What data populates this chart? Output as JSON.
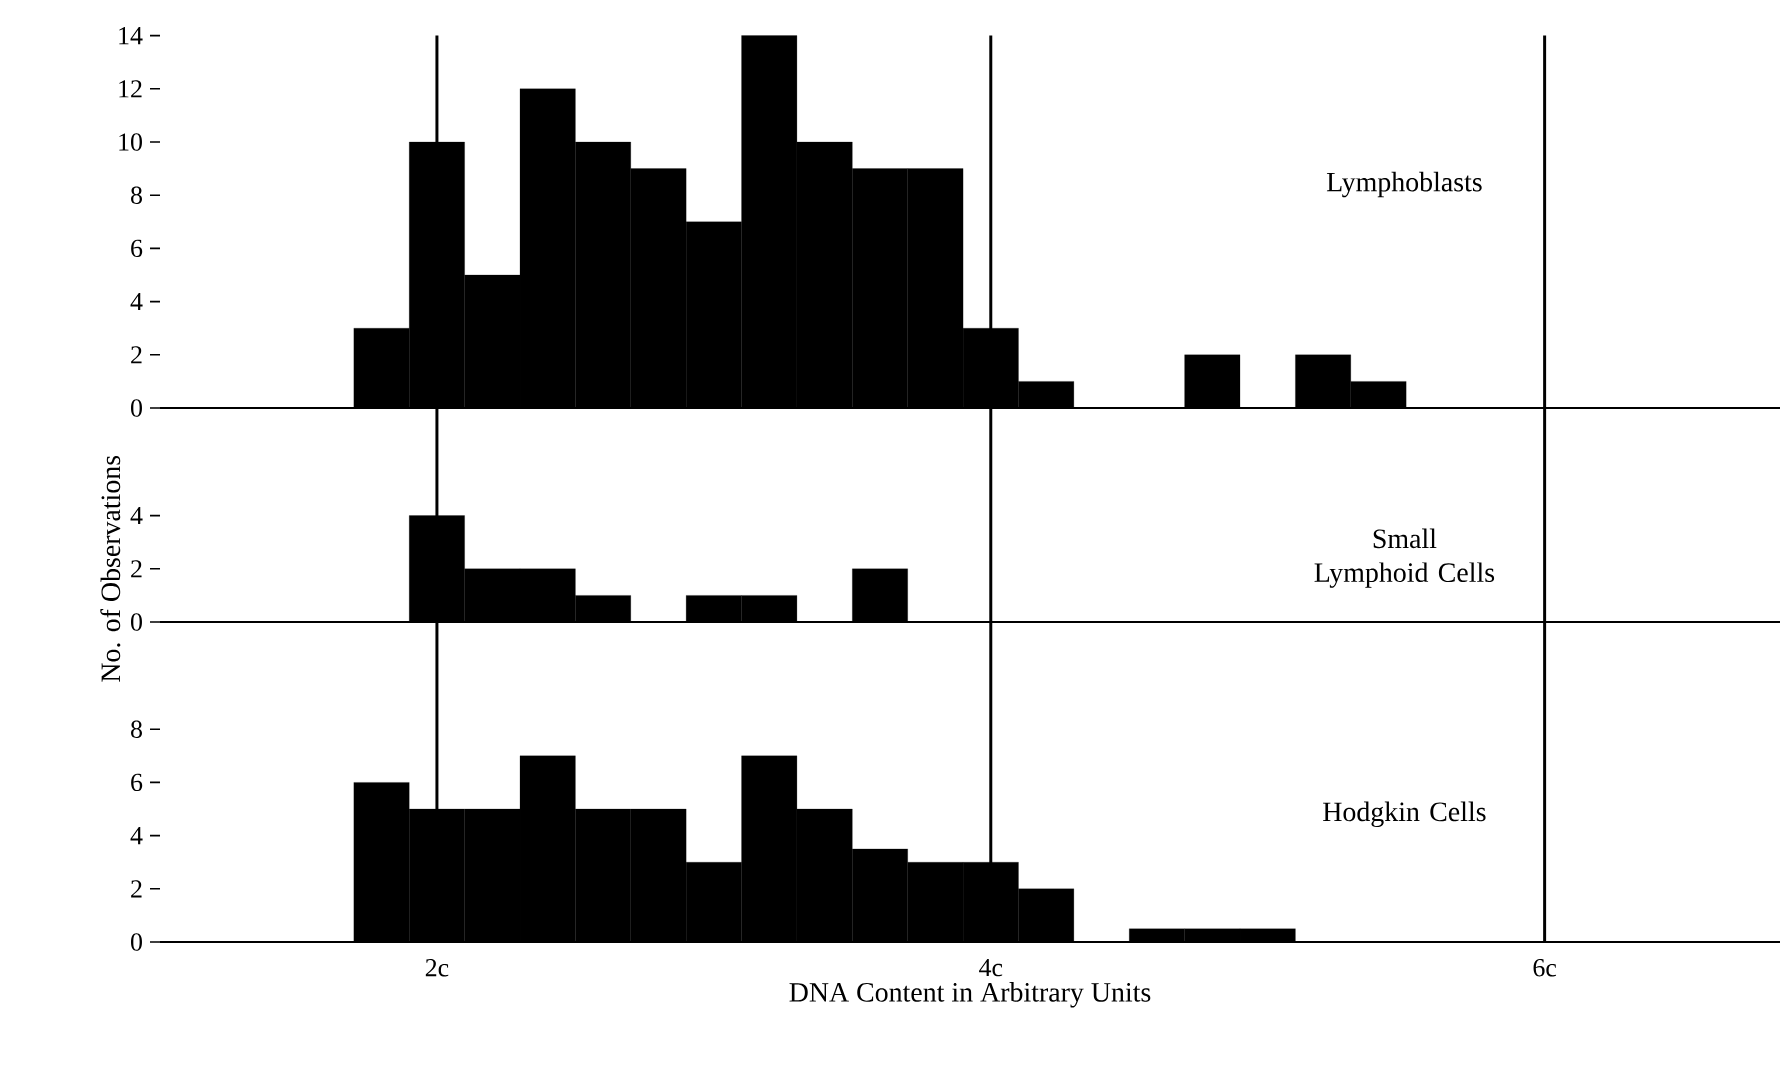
{
  "chart_data": [
    {
      "type": "histogram",
      "title": "Lymphoblasts",
      "bins": [
        1.7,
        1.9,
        2.1,
        2.3,
        2.5,
        2.7,
        2.9,
        3.1,
        3.3,
        3.5,
        3.7,
        3.9,
        4.1,
        4.3,
        4.5,
        4.7,
        4.9,
        5.1,
        5.3,
        5.5
      ],
      "values": [
        3,
        10,
        5,
        12,
        10,
        9,
        7,
        14,
        10,
        9,
        9,
        3,
        1,
        0,
        0,
        2,
        0,
        2,
        1
      ],
      "color": "#000000",
      "xlim": [
        1.0,
        6.85
      ],
      "ylim": [
        0,
        14
      ],
      "yticks": [
        0,
        2,
        4,
        6,
        8,
        10,
        12,
        14
      ],
      "tick_labels": "y",
      "ref_lines": [
        {
          "axis": "x",
          "value": 2
        },
        {
          "axis": "x",
          "value": 4
        },
        {
          "axis": "x",
          "value": 6
        }
      ]
    },
    {
      "type": "histogram",
      "title": "Small Lymphoid Cells",
      "ylabel": "No. of Observations",
      "bins": [
        1.9,
        2.1,
        2.3,
        2.5,
        2.7,
        2.9,
        3.1,
        3.3,
        3.5,
        3.7
      ],
      "values": [
        4,
        2,
        2,
        1,
        0,
        1,
        1,
        0,
        2
      ],
      "color": "#000000",
      "xlim": [
        1.0,
        6.85
      ],
      "ylim": [
        0,
        4
      ],
      "yticks": [
        0,
        2,
        4
      ],
      "tick_labels": "y",
      "ref_lines": [
        {
          "axis": "x",
          "value": 2
        },
        {
          "axis": "x",
          "value": 4
        },
        {
          "axis": "x",
          "value": 6
        }
      ]
    },
    {
      "type": "histogram",
      "title": "Hodgkin Cells",
      "xlabel": "DNA Content in Arbitrary Units",
      "bins": [
        1.7,
        1.9,
        2.1,
        2.3,
        2.5,
        2.7,
        2.9,
        3.1,
        3.3,
        3.5,
        3.7,
        3.9,
        4.1,
        4.3,
        4.5,
        4.7,
        4.9,
        5.1
      ],
      "values": [
        6,
        5,
        5,
        7,
        5,
        5,
        3,
        7,
        5,
        3.5,
        3,
        3,
        2,
        0,
        0.5,
        0.5,
        0.5
      ],
      "color": "#000000",
      "xlim": [
        1.0,
        6.85
      ],
      "xticks": [
        {
          "value": 2,
          "label": "2c"
        },
        {
          "value": 4,
          "label": "4c"
        },
        {
          "value": 6,
          "label": "6c"
        }
      ],
      "ylim": [
        0,
        8
      ],
      "yticks": [
        0,
        2,
        4,
        6,
        8
      ],
      "ref_lines": [
        {
          "axis": "x",
          "value": 2
        },
        {
          "axis": "x",
          "value": 4
        },
        {
          "axis": "x",
          "value": 6
        }
      ]
    }
  ]
}
